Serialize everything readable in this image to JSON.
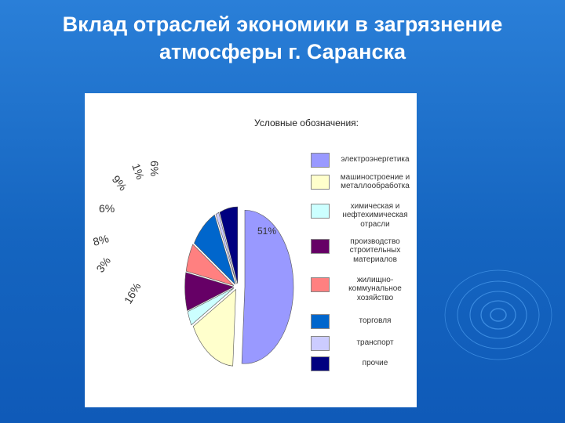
{
  "slide": {
    "title_line1": "Вклад  отраслей экономики в загрязнение",
    "title_line2": "атмосферы  г. Саранска"
  },
  "legend": {
    "title": "Условные  обозначения:"
  },
  "chart_data": {
    "type": "pie",
    "title": "Вклад  отраслей экономики в загрязнение атмосферы  г. Саранска",
    "legend_title": "Условные  обозначения:",
    "legend_position": "right",
    "exploded": true,
    "slices": [
      {
        "label": "электроэнергетика",
        "value": 51,
        "data_label": "51%",
        "color": "#9999ff"
      },
      {
        "label": "машиностроение и металлообработка",
        "value": 16,
        "data_label": "16%",
        "color": "#ffffcc"
      },
      {
        "label": "химическая и нефтехимическая отрасли",
        "value": 3,
        "data_label": "3%",
        "color": "#ccffff"
      },
      {
        "label": "производство строительных материалов",
        "value": 8,
        "data_label": "8%",
        "color": "#660066"
      },
      {
        "label": "жилищно-коммунальное хозяйство",
        "value": 6,
        "data_label": "6%",
        "color": "#ff8080"
      },
      {
        "label": "торговля",
        "value": 9,
        "data_label": "9%",
        "color": "#0066cc"
      },
      {
        "label": "транспорт",
        "value": 1,
        "data_label": "1%",
        "color": "#ccccff"
      },
      {
        "label": "прочие",
        "value": 6,
        "data_label": "6%",
        "color": "#000080"
      }
    ]
  }
}
